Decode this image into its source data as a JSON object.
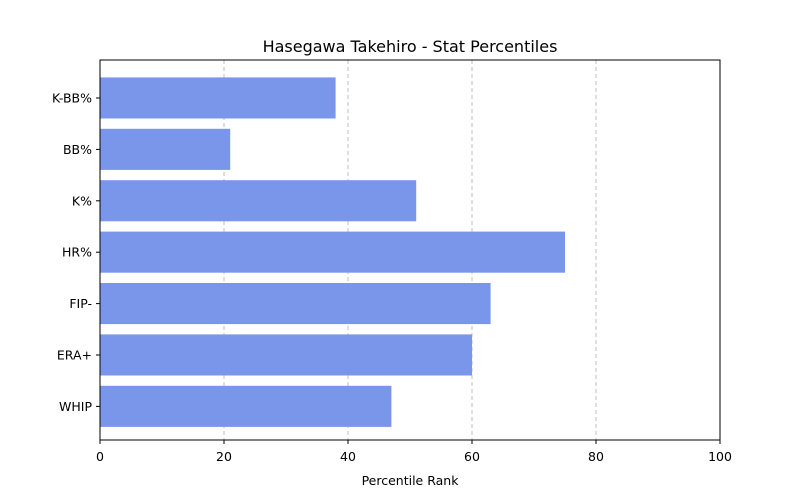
{
  "chart_data": {
    "type": "bar",
    "orientation": "horizontal",
    "title": "Hasegawa Takehiro - Stat Percentiles",
    "xlabel": "Percentile Rank",
    "ylabel": "",
    "xlim": [
      0,
      100
    ],
    "x_ticks": [
      0,
      20,
      40,
      60,
      80,
      100
    ],
    "categories": [
      "K-BB%",
      "BB%",
      "K%",
      "HR%",
      "FIP-",
      "ERA+",
      "WHIP"
    ],
    "values": [
      38,
      21,
      51,
      75,
      63,
      60,
      47
    ],
    "bar_color": "#7a96ea",
    "grid": "x-axis dashed"
  }
}
